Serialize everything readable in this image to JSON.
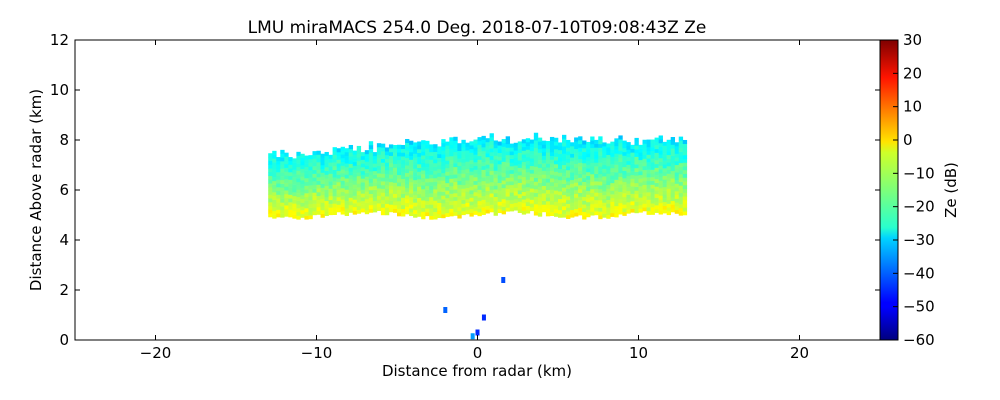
{
  "chart_data": {
    "type": "heatmap",
    "title": "LMU miraMACS 254.0 Deg. 2018-07-10T09:08:43Z  Ze",
    "xlabel": "Distance from radar (km)",
    "ylabel": "Distance Above radar  (km)",
    "xlim": [
      -25,
      25
    ],
    "ylim": [
      0,
      12
    ],
    "x_ticks": [
      -20,
      -10,
      0,
      10,
      20
    ],
    "x_tick_labels": [
      "−20",
      "−10",
      "0",
      "10",
      "20"
    ],
    "y_ticks": [
      0,
      2,
      4,
      6,
      8,
      10,
      12
    ],
    "y_tick_labels": [
      "0",
      "2",
      "4",
      "6",
      "8",
      "10",
      "12"
    ],
    "grid": false,
    "colorbar": {
      "label": "Ze (dB)",
      "range": [
        -60,
        30
      ],
      "ticks": [
        30,
        20,
        10,
        0,
        -10,
        -20,
        -30,
        -40,
        -50,
        -60
      ],
      "tick_labels": [
        "30",
        "20",
        "10",
        "0",
        "−10",
        "−20",
        "−30",
        "−40",
        "−50",
        "−60"
      ],
      "colormap": "jet"
    },
    "cloud_layer": {
      "x_range": [
        -13,
        13
      ],
      "base_km": 5.0,
      "top_left_km": 7.3,
      "top_center_km": 8.0,
      "top_right_km": 7.9,
      "ze_base_db": -5,
      "ze_mid_db": -12,
      "ze_top_db": -28
    },
    "near_radar_echoes": [
      {
        "x": 1.6,
        "y": 2.4,
        "ze": -42
      },
      {
        "x": -0.3,
        "y": 0.15,
        "ze": -35
      },
      {
        "x": 0.4,
        "y": 0.9,
        "ze": -45
      },
      {
        "x": -2.0,
        "y": 1.2,
        "ze": -40
      },
      {
        "x": 0.0,
        "y": 0.3,
        "ze": -45
      }
    ]
  }
}
